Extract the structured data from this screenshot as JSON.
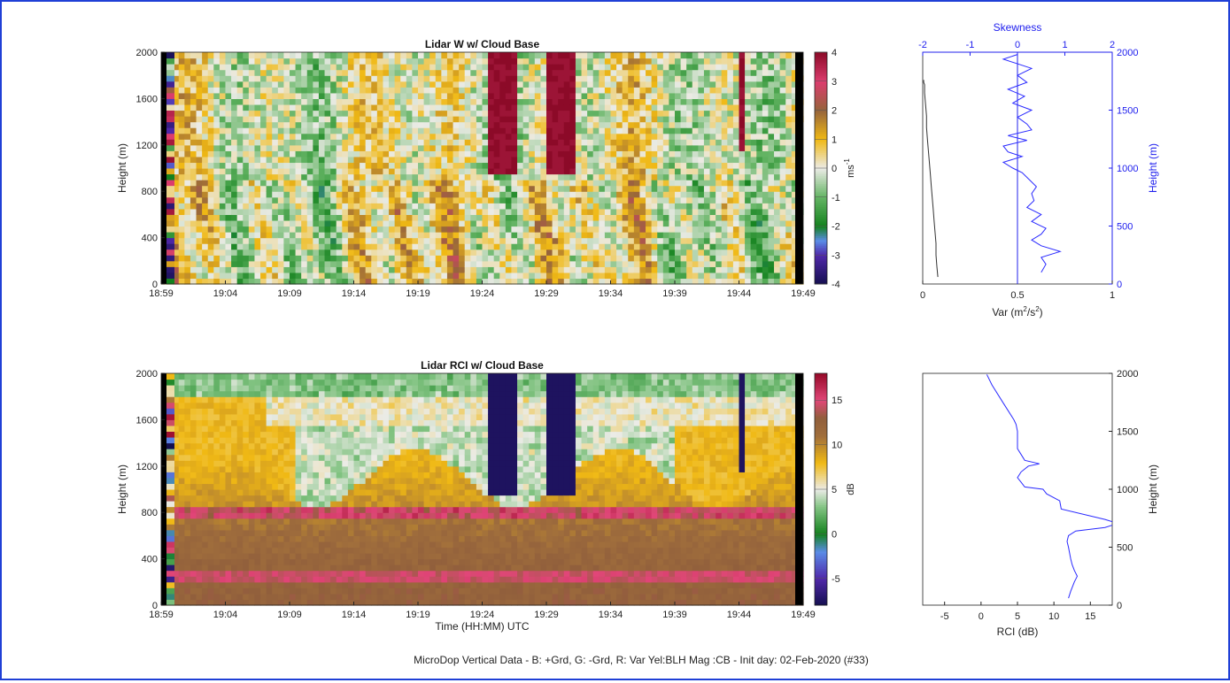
{
  "footer": "MicroDop Vertical Data    -   B: +Grd, G: -Grd, R: Var Yel:BLH Mag :CB    -    Init day: 02-Feb-2020 (#33)",
  "colors": {
    "frame": "#1f3fd6",
    "blue_axis": "#2020ee",
    "profile_blue": "#2a2aff",
    "var_line": "#333333"
  },
  "chart_data": [
    {
      "type": "heatmap",
      "title": "Lidar W w/ Cloud Base",
      "xlabel": "",
      "ylabel": "Height (m)",
      "x_ticks": [
        "18:59",
        "19:04",
        "19:09",
        "19:14",
        "19:19",
        "19:24",
        "19:29",
        "19:34",
        "19:39",
        "19:44",
        "19:49"
      ],
      "y_ticks": [
        0,
        400,
        800,
        1200,
        1600,
        2000
      ],
      "ylim": [
        0,
        2000
      ],
      "colorbar": {
        "label": "ms-1",
        "label_base": "ms",
        "label_exp": "-1",
        "ticks": [
          -4,
          -3,
          -2,
          -1,
          0,
          1,
          2,
          3,
          4
        ],
        "range": [
          -4,
          4
        ]
      },
      "cloud_columns": [
        {
          "start": "19:24:35",
          "end": "19:25:00",
          "base_m": 950
        },
        {
          "start": "19:25:30",
          "end": "19:26:35",
          "base_m": 950
        },
        {
          "start": "19:29:05",
          "end": "19:29:35",
          "base_m": 950
        },
        {
          "start": "19:29:50",
          "end": "19:31:05",
          "base_m": 930
        },
        {
          "start": "19:44:00",
          "end": "19:44:25",
          "base_m": 1150
        }
      ]
    },
    {
      "type": "line",
      "xlabel_top": "Skewness",
      "xlabel": "Var (m2/s2)",
      "xlabel_base": "Var (m",
      "xlabel_sup": "2",
      "xlabel_mid": "/s",
      "xlabel_sup2": "2",
      "xlabel_end": ")",
      "ylabel_right": "Height (m)",
      "x_ticks_bottom": [
        "0",
        "0.5",
        "1"
      ],
      "xlim_bottom": [
        0,
        1
      ],
      "x_ticks_top": [
        "-2",
        "-1",
        "0",
        "1",
        "2"
      ],
      "xlim_top": [
        -2,
        2
      ],
      "y_ticks_right": [
        0,
        500,
        1000,
        1500,
        2000
      ],
      "ylim": [
        0,
        2000
      ],
      "series": [
        {
          "axis": "bottom",
          "x": [
            0.08,
            0.075,
            0.07,
            0.07,
            0.065,
            0.06,
            0.055,
            0.05,
            0.045,
            0.04,
            0.035,
            0.03,
            0.025,
            0.02,
            0.02,
            0.015,
            0.01,
            0.01,
            0.01,
            0.005,
            0.005
          ],
          "y": [
            60,
            150,
            250,
            350,
            450,
            550,
            650,
            750,
            850,
            950,
            1050,
            1150,
            1250,
            1350,
            1450,
            1550,
            1650,
            1700,
            1720,
            1740,
            1760
          ]
        },
        {
          "axis": "top",
          "x": [
            0.5,
            0.6,
            0.5,
            0.9,
            0.5,
            0.3,
            0.5,
            0.6,
            0.3,
            0.5,
            0.2,
            0.35,
            0.3,
            0.4,
            0.25,
            0.1,
            -0.1,
            -0.3,
            0.1,
            -0.2,
            -0.3,
            0.2,
            -0.2,
            0.3,
            0.2,
            0.0,
            0.3,
            -0.1,
            0.15,
            -0.2,
            0.2,
            0.0,
            0.3,
            -0.3,
            0.0
          ],
          "y": [
            100,
            170,
            230,
            280,
            330,
            380,
            430,
            480,
            540,
            600,
            660,
            720,
            780,
            840,
            900,
            960,
            1000,
            1050,
            1100,
            1140,
            1190,
            1240,
            1280,
            1330,
            1380,
            1440,
            1500,
            1560,
            1620,
            1680,
            1740,
            1800,
            1860,
            1940,
            1980
          ]
        }
      ]
    },
    {
      "type": "heatmap",
      "title": "Lidar RCI w/ Cloud Base",
      "xlabel": "Time (HH:MM) UTC",
      "ylabel": "Height (m)",
      "x_ticks": [
        "18:59",
        "19:04",
        "19:09",
        "19:14",
        "19:19",
        "19:24",
        "19:29",
        "19:34",
        "19:39",
        "19:44",
        "19:49"
      ],
      "y_ticks": [
        0,
        400,
        800,
        1200,
        1600,
        2000
      ],
      "ylim": [
        0,
        2000
      ],
      "colorbar": {
        "label": "dB",
        "ticks": [
          -5,
          0,
          5,
          10,
          15
        ],
        "range": [
          -8,
          18
        ]
      },
      "cloud_columns": [
        {
          "start": "19:24:35",
          "end": "19:25:05",
          "base_m": 950
        },
        {
          "start": "19:25:30",
          "end": "19:26:40",
          "base_m": 950
        },
        {
          "start": "19:29:05",
          "end": "19:29:40",
          "base_m": 950
        },
        {
          "start": "19:29:55",
          "end": "19:31:10",
          "base_m": 930
        },
        {
          "start": "19:44:00",
          "end": "19:44:25",
          "base_m": 1150
        }
      ]
    },
    {
      "type": "line",
      "xlabel": "RCI (dB)",
      "ylabel_right": "Height (m)",
      "x_ticks": [
        -5,
        0,
        5,
        10,
        15
      ],
      "xlim": [
        -8,
        18
      ],
      "y_ticks_right": [
        0,
        500,
        1000,
        1500,
        2000
      ],
      "ylim": [
        0,
        2000
      ],
      "series": [
        {
          "x": [
            12.0,
            12.3,
            12.8,
            13.2,
            12.8,
            12.5,
            12.3,
            12.0,
            11.8,
            12.0,
            13.0,
            17.0,
            18.5,
            18.0,
            17.0,
            11.0,
            10.8,
            9.0,
            8.5,
            6.0,
            5.5,
            5.0,
            5.5,
            6.5,
            8.0,
            6.0,
            5.5,
            5.0,
            5.0,
            5.0,
            4.8,
            4.5,
            3.0,
            1.5,
            0.8
          ],
          "y": [
            60,
            120,
            200,
            250,
            300,
            350,
            400,
            500,
            550,
            600,
            640,
            670,
            700,
            720,
            740,
            830,
            900,
            960,
            1000,
            1020,
            1060,
            1100,
            1150,
            1200,
            1220,
            1250,
            1300,
            1350,
            1400,
            1500,
            1560,
            1600,
            1750,
            1900,
            1990
          ]
        }
      ]
    }
  ]
}
